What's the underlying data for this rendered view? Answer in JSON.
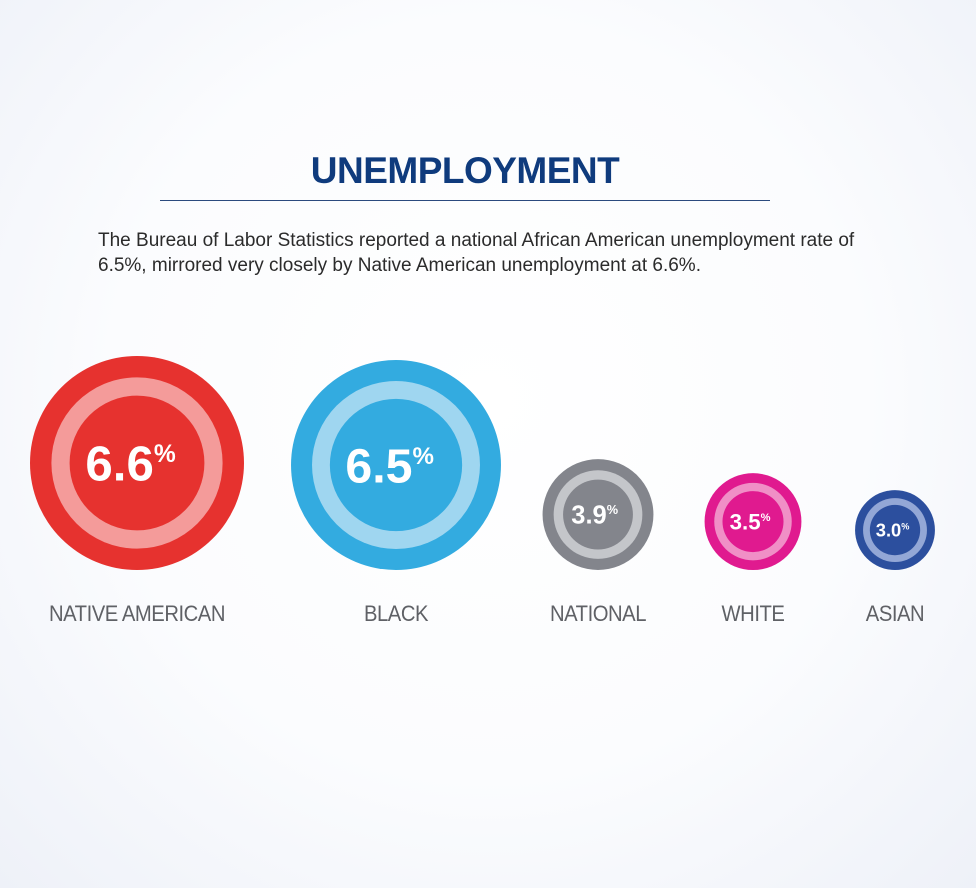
{
  "header": {
    "title": "UNEMPLOYMENT",
    "description": "The Bureau of Labor Statistics reported a national African American unemployment rate of 6.5%, mirrored very closely by Native American unemployment at 6.6%."
  },
  "colors": {
    "title": "#0f3b7d",
    "label_text": "#ffffff",
    "category_text": "#5f6166",
    "rule": "#2b4a7e"
  },
  "chart_data": {
    "type": "bubble",
    "title": "UNEMPLOYMENT",
    "unit": "%",
    "categories": [
      "NATIVE AMERICAN",
      "BLACK",
      "NATIONAL",
      "WHITE",
      "ASIAN"
    ],
    "values": [
      6.6,
      6.5,
      3.9,
      3.5,
      3.0
    ],
    "value_labels": [
      "6.6",
      "6.5",
      "3.9",
      "3.5",
      "3.0"
    ],
    "colors": [
      {
        "outer": "#e6322f",
        "ring": "#f49b9a"
      },
      {
        "outer": "#33abe0",
        "ring": "#9fd6f0"
      },
      {
        "outer": "#83858c",
        "ring": "#c4c6ca"
      },
      {
        "outer": "#e01a8f",
        "ring": "#f08fc6"
      },
      {
        "outer": "#2c4f9e",
        "ring": "#93a7d6"
      }
    ]
  }
}
